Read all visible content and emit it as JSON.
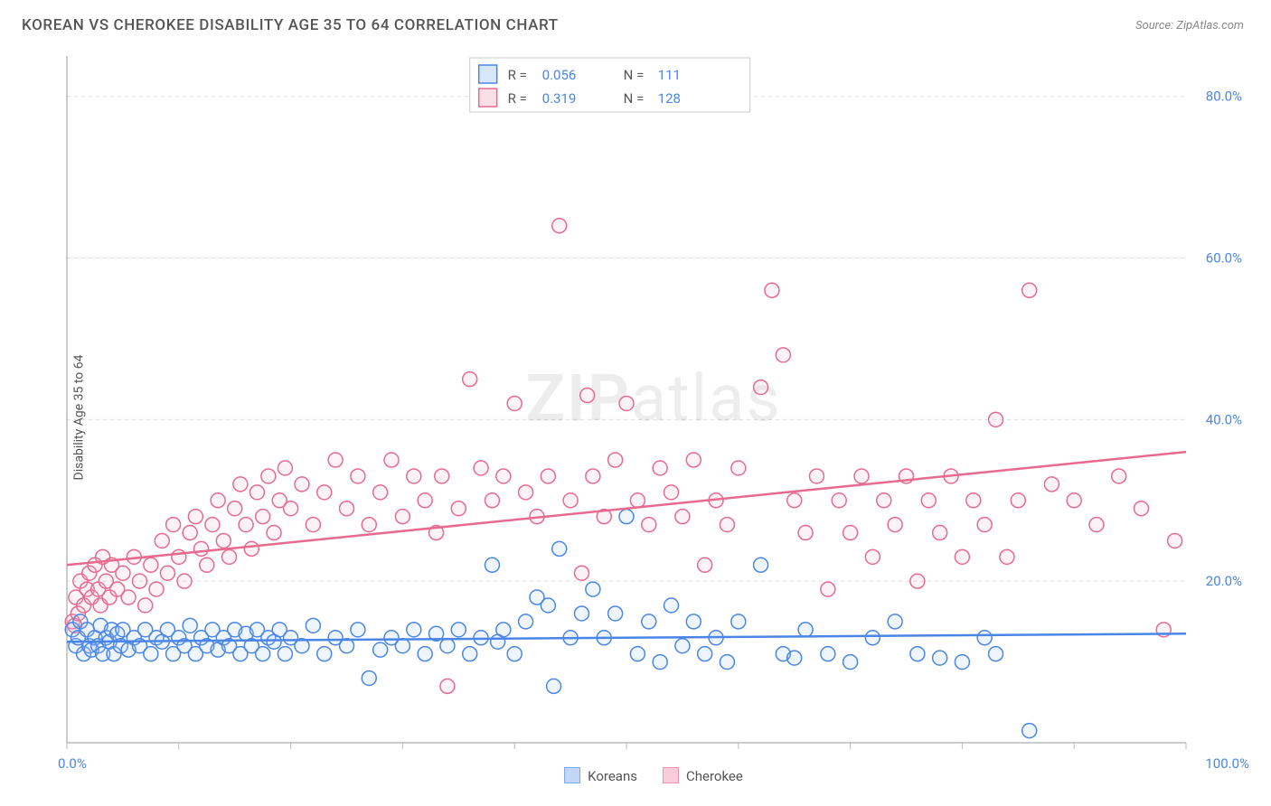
{
  "title": "KOREAN VS CHEROKEE DISABILITY AGE 35 TO 64 CORRELATION CHART",
  "source": "Source: ZipAtlas.com",
  "ylabel": "Disability Age 35 to 64",
  "watermark": "ZIPatlas",
  "chart": {
    "type": "scatter",
    "background": "#ffffff",
    "grid_color": "#dcdcdc",
    "axis_color": "#bbbbbb",
    "xlim": [
      0,
      100
    ],
    "ylim": [
      0,
      85
    ],
    "x_ticks": [
      0,
      10,
      20,
      30,
      40,
      50,
      60,
      70,
      80,
      90,
      100
    ],
    "x_tick_labels": {
      "0": "0.0%",
      "100": "100.0%"
    },
    "y_ticks": [
      20,
      40,
      60,
      80
    ],
    "y_tick_labels": [
      "20.0%",
      "40.0%",
      "60.0%",
      "80.0%"
    ],
    "marker_radius": 8,
    "marker_fill_opacity": 0.18,
    "series": [
      {
        "name": "Koreans",
        "color_stroke": "#4a86e8",
        "color_fill": "#a7c7f2",
        "R": "0.056",
        "N": "111",
        "trend": {
          "x1": 0,
          "y1": 12.5,
          "x2": 100,
          "y2": 13.5
        },
        "points": [
          [
            0.5,
            14
          ],
          [
            0.8,
            12
          ],
          [
            1,
            13
          ],
          [
            1.2,
            15
          ],
          [
            1.5,
            11
          ],
          [
            1.8,
            14
          ],
          [
            2,
            12
          ],
          [
            2.2,
            11.5
          ],
          [
            2.5,
            13
          ],
          [
            2.8,
            12
          ],
          [
            3,
            14.5
          ],
          [
            3.2,
            11
          ],
          [
            3.5,
            13
          ],
          [
            3.8,
            12.5
          ],
          [
            4,
            14
          ],
          [
            4.2,
            11
          ],
          [
            4.5,
            13.5
          ],
          [
            4.8,
            12
          ],
          [
            5,
            14
          ],
          [
            5.5,
            11.5
          ],
          [
            6,
            13
          ],
          [
            6.5,
            12
          ],
          [
            7,
            14
          ],
          [
            7.5,
            11
          ],
          [
            8,
            13
          ],
          [
            8.5,
            12.5
          ],
          [
            9,
            14
          ],
          [
            9.5,
            11
          ],
          [
            10,
            13
          ],
          [
            10.5,
            12
          ],
          [
            11,
            14.5
          ],
          [
            11.5,
            11
          ],
          [
            12,
            13
          ],
          [
            12.5,
            12
          ],
          [
            13,
            14
          ],
          [
            13.5,
            11.5
          ],
          [
            14,
            13
          ],
          [
            14.5,
            12
          ],
          [
            15,
            14
          ],
          [
            15.5,
            11
          ],
          [
            16,
            13.5
          ],
          [
            16.5,
            12
          ],
          [
            17,
            14
          ],
          [
            17.5,
            11
          ],
          [
            18,
            13
          ],
          [
            18.5,
            12.5
          ],
          [
            19,
            14
          ],
          [
            19.5,
            11
          ],
          [
            20,
            13
          ],
          [
            21,
            12
          ],
          [
            22,
            14.5
          ],
          [
            23,
            11
          ],
          [
            24,
            13
          ],
          [
            25,
            12
          ],
          [
            26,
            14
          ],
          [
            27,
            8
          ],
          [
            28,
            11.5
          ],
          [
            29,
            13
          ],
          [
            30,
            12
          ],
          [
            31,
            14
          ],
          [
            32,
            11
          ],
          [
            33,
            13.5
          ],
          [
            34,
            12
          ],
          [
            35,
            14
          ],
          [
            36,
            11
          ],
          [
            37,
            13
          ],
          [
            38,
            22
          ],
          [
            38.5,
            12.5
          ],
          [
            39,
            14
          ],
          [
            40,
            11
          ],
          [
            41,
            15
          ],
          [
            42,
            18
          ],
          [
            43,
            17
          ],
          [
            43.5,
            7
          ],
          [
            44,
            24
          ],
          [
            45,
            13
          ],
          [
            46,
            16
          ],
          [
            47,
            19
          ],
          [
            48,
            13
          ],
          [
            49,
            16
          ],
          [
            50,
            28
          ],
          [
            51,
            11
          ],
          [
            52,
            15
          ],
          [
            53,
            10
          ],
          [
            54,
            17
          ],
          [
            55,
            12
          ],
          [
            56,
            15
          ],
          [
            57,
            11
          ],
          [
            58,
            13
          ],
          [
            59,
            10
          ],
          [
            60,
            15
          ],
          [
            62,
            22
          ],
          [
            64,
            11
          ],
          [
            65,
            10.5
          ],
          [
            66,
            14
          ],
          [
            68,
            11
          ],
          [
            70,
            10
          ],
          [
            72,
            13
          ],
          [
            74,
            15
          ],
          [
            76,
            11
          ],
          [
            78,
            10.5
          ],
          [
            80,
            10
          ],
          [
            82,
            13
          ],
          [
            83,
            11
          ],
          [
            86,
            1.5
          ]
        ]
      },
      {
        "name": "Cherokee",
        "color_stroke": "#e86a8e",
        "color_fill": "#f6b8ca",
        "R": "0.319",
        "N": "128",
        "trend": {
          "x1": 0,
          "y1": 22,
          "x2": 100,
          "y2": 36
        },
        "points": [
          [
            0.5,
            15
          ],
          [
            0.7,
            14.5
          ],
          [
            0.8,
            18
          ],
          [
            1,
            16
          ],
          [
            1.2,
            20
          ],
          [
            1.5,
            17
          ],
          [
            1.8,
            19
          ],
          [
            2,
            21
          ],
          [
            2.2,
            18
          ],
          [
            2.5,
            22
          ],
          [
            2.8,
            19
          ],
          [
            3,
            17
          ],
          [
            3.2,
            23
          ],
          [
            3.5,
            20
          ],
          [
            3.8,
            18
          ],
          [
            4,
            22
          ],
          [
            4.5,
            19
          ],
          [
            5,
            21
          ],
          [
            5.5,
            18
          ],
          [
            6,
            23
          ],
          [
            6.5,
            20
          ],
          [
            7,
            17
          ],
          [
            7.5,
            22
          ],
          [
            8,
            19
          ],
          [
            8.5,
            25
          ],
          [
            9,
            21
          ],
          [
            9.5,
            27
          ],
          [
            10,
            23
          ],
          [
            10.5,
            20
          ],
          [
            11,
            26
          ],
          [
            11.5,
            28
          ],
          [
            12,
            24
          ],
          [
            12.5,
            22
          ],
          [
            13,
            27
          ],
          [
            13.5,
            30
          ],
          [
            14,
            25
          ],
          [
            14.5,
            23
          ],
          [
            15,
            29
          ],
          [
            15.5,
            32
          ],
          [
            16,
            27
          ],
          [
            16.5,
            24
          ],
          [
            17,
            31
          ],
          [
            17.5,
            28
          ],
          [
            18,
            33
          ],
          [
            18.5,
            26
          ],
          [
            19,
            30
          ],
          [
            19.5,
            34
          ],
          [
            20,
            29
          ],
          [
            21,
            32
          ],
          [
            22,
            27
          ],
          [
            23,
            31
          ],
          [
            24,
            35
          ],
          [
            25,
            29
          ],
          [
            26,
            33
          ],
          [
            27,
            27
          ],
          [
            28,
            31
          ],
          [
            29,
            35
          ],
          [
            30,
            28
          ],
          [
            31,
            33
          ],
          [
            32,
            30
          ],
          [
            33,
            26
          ],
          [
            33.5,
            33
          ],
          [
            34,
            7
          ],
          [
            35,
            29
          ],
          [
            36,
            45
          ],
          [
            37,
            34
          ],
          [
            38,
            30
          ],
          [
            39,
            33
          ],
          [
            40,
            42
          ],
          [
            41,
            31
          ],
          [
            42,
            28
          ],
          [
            43,
            33
          ],
          [
            44,
            64
          ],
          [
            45,
            30
          ],
          [
            46,
            21
          ],
          [
            46.5,
            43
          ],
          [
            47,
            33
          ],
          [
            48,
            28
          ],
          [
            49,
            35
          ],
          [
            50,
            42
          ],
          [
            51,
            30
          ],
          [
            52,
            27
          ],
          [
            53,
            34
          ],
          [
            54,
            31
          ],
          [
            55,
            28
          ],
          [
            56,
            35
          ],
          [
            57,
            22
          ],
          [
            58,
            30
          ],
          [
            59,
            27
          ],
          [
            60,
            34
          ],
          [
            62,
            44
          ],
          [
            63,
            56
          ],
          [
            64,
            48
          ],
          [
            65,
            30
          ],
          [
            66,
            26
          ],
          [
            67,
            33
          ],
          [
            68,
            19
          ],
          [
            69,
            30
          ],
          [
            70,
            26
          ],
          [
            71,
            33
          ],
          [
            72,
            23
          ],
          [
            73,
            30
          ],
          [
            74,
            27
          ],
          [
            75,
            33
          ],
          [
            76,
            20
          ],
          [
            77,
            30
          ],
          [
            78,
            26
          ],
          [
            79,
            33
          ],
          [
            80,
            23
          ],
          [
            81,
            30
          ],
          [
            82,
            27
          ],
          [
            83,
            40
          ],
          [
            84,
            23
          ],
          [
            85,
            30
          ],
          [
            86,
            56
          ],
          [
            88,
            32
          ],
          [
            90,
            30
          ],
          [
            92,
            27
          ],
          [
            94,
            33
          ],
          [
            96,
            29
          ],
          [
            98,
            14
          ],
          [
            99,
            25
          ]
        ]
      }
    ],
    "legend_top": {
      "rows": [
        {
          "swatch_fill": "#a7c7f2",
          "swatch_stroke": "#4a86e8",
          "r_label": "R =",
          "r_val": "0.056",
          "n_label": "N =",
          "n_val": "111"
        },
        {
          "swatch_fill": "#f6b8ca",
          "swatch_stroke": "#e86a8e",
          "r_label": "R =",
          "r_val": "0.319",
          "n_label": "N =",
          "n_val": "128"
        }
      ]
    },
    "legend_bottom": [
      {
        "swatch_fill": "#a7c7f2",
        "swatch_stroke": "#4a86e8",
        "label": "Koreans"
      },
      {
        "swatch_fill": "#f6b8ca",
        "swatch_stroke": "#e86a8e",
        "label": "Cherokee"
      }
    ]
  }
}
